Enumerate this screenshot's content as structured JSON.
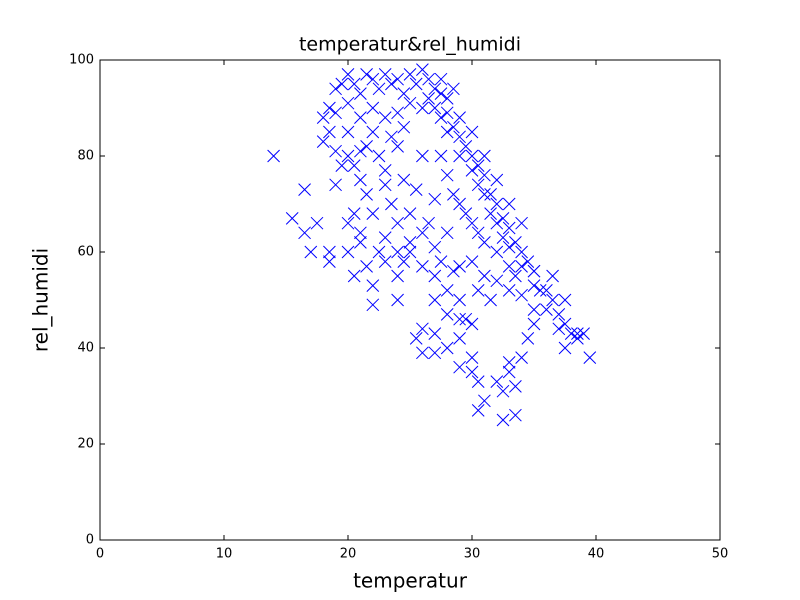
{
  "chart_data": {
    "type": "scatter",
    "title": "temperatur&rel_humidi",
    "x_label": "temperatur",
    "y_label": "rel_humidi",
    "color": "#0000ff",
    "marker": "x",
    "xlim": [
      0,
      50
    ],
    "xticks": [
      0,
      10,
      20,
      30,
      40,
      50
    ],
    "ylim": [
      0,
      100
    ],
    "yticks": [
      0,
      20,
      40,
      60,
      80,
      100
    ],
    "x": [
      14,
      15.5,
      16.5,
      16.5,
      17,
      17.5,
      18.5,
      18.5,
      19,
      19,
      18,
      18,
      18.5,
      19,
      20,
      21,
      20,
      20.5,
      21,
      20,
      20.5,
      21.5,
      22,
      22,
      23,
      24,
      24,
      24.5,
      25,
      25.5,
      26,
      26,
      27,
      27,
      28,
      29,
      29,
      29.5,
      30,
      29,
      30,
      30,
      30.5,
      30.5,
      31,
      32,
      32.5,
      32.5,
      33,
      33,
      33.5,
      33.5,
      34,
      34.5,
      35,
      36,
      37,
      37.5,
      38.5,
      39,
      39.5,
      37.5,
      36.5,
      35,
      19.5,
      20,
      20.5,
      21,
      21.5,
      22,
      22.5,
      23,
      23.5,
      24,
      24.5,
      25,
      25.5,
      26,
      26.5,
      27,
      27.5,
      28,
      25,
      26,
      22,
      21,
      20,
      19,
      23,
      24,
      20,
      20.5,
      21,
      21.5,
      22,
      22.5,
      23,
      23.5,
      24,
      24.5,
      25,
      25.5,
      26,
      26.5,
      27,
      22,
      23,
      24,
      25,
      26,
      27,
      21,
      22.5,
      24,
      26,
      27,
      28,
      27.5,
      28.5,
      29,
      30,
      31,
      28,
      29,
      30.5,
      31.5,
      32,
      33,
      28,
      27,
      23.5,
      21.5,
      19.5,
      18.5,
      24.5,
      23,
      26.5,
      27,
      27.5,
      28,
      28,
      28.5,
      29,
      29,
      29.5,
      30,
      30,
      30.5,
      30.5,
      31,
      31,
      31.5,
      31.5,
      32,
      32,
      32.5,
      32.5,
      33,
      33,
      33.5,
      34,
      34,
      34.5,
      35,
      35,
      35.5,
      36,
      36.5,
      37,
      37.5,
      38,
      38.5,
      27.5,
      28,
      28.5,
      29,
      29.5,
      30,
      30.5,
      31,
      32,
      33,
      33.5,
      34,
      35,
      33,
      34,
      32,
      31,
      30,
      29,
      28.5,
      27.5
    ],
    "values": [
      80,
      67,
      73,
      64,
      60,
      66,
      60,
      58,
      74,
      81,
      83,
      88,
      90,
      94,
      80,
      81,
      66,
      68,
      64,
      60,
      55,
      57,
      53,
      49,
      58,
      50,
      55,
      58,
      60,
      42,
      44,
      39,
      43,
      39,
      40,
      42,
      46,
      46,
      45,
      36,
      38,
      35,
      33,
      27,
      29,
      33,
      31,
      25,
      35,
      37,
      26,
      32,
      38,
      42,
      45,
      48,
      44,
      40,
      43,
      43,
      38,
      50,
      55,
      56,
      95,
      97,
      95,
      93,
      97,
      96,
      94,
      97,
      95,
      96,
      93,
      97,
      95,
      98,
      96,
      94,
      93,
      92,
      91,
      90,
      90,
      88,
      91,
      89,
      88,
      89,
      85,
      78,
      75,
      72,
      85,
      80,
      77,
      70,
      82,
      75,
      68,
      73,
      80,
      66,
      71,
      68,
      63,
      66,
      62,
      57,
      55,
      62,
      60,
      60,
      64,
      61,
      64,
      58,
      56,
      57,
      58,
      55,
      52,
      50,
      52,
      50,
      54,
      52,
      47,
      50,
      84,
      82,
      78,
      85,
      86,
      74,
      92,
      90,
      88,
      89,
      85,
      86,
      84,
      80,
      82,
      80,
      77,
      78,
      74,
      76,
      72,
      72,
      68,
      70,
      66,
      67,
      63,
      65,
      61,
      62,
      60,
      57,
      58,
      56,
      53,
      52,
      52,
      50,
      47,
      45,
      43,
      42,
      80,
      76,
      72,
      70,
      68,
      66,
      64,
      62,
      60,
      57,
      55,
      51,
      48,
      70,
      66,
      75,
      80,
      85,
      88,
      94,
      96
    ]
  }
}
